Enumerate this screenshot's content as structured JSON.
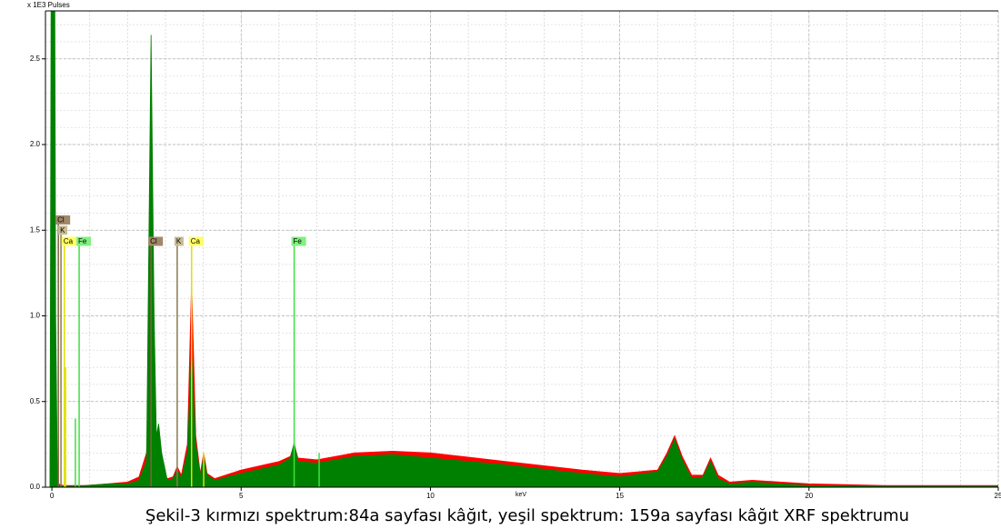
{
  "chart_data": {
    "type": "area",
    "y_label": "x 1E3 Pulses",
    "x_label": "keV",
    "caption": "Şekil-3 kırmızı spektrum:84a sayfası kâğıt, yeşil spektrum: 159a sayfası kâğıt XRF spektrumu",
    "xlim": [
      -0.17,
      25
    ],
    "ylim": [
      0,
      2.78
    ],
    "xticks": [
      0,
      5,
      10,
      15,
      20,
      25
    ],
    "yticks": [
      {
        "value": 0,
        "label": "0.0"
      },
      {
        "value": 0.5,
        "label": "0.5"
      },
      {
        "value": 1,
        "label": "1.0"
      },
      {
        "value": 1.5,
        "label": "1.5"
      },
      {
        "value": 2,
        "label": "2.0"
      },
      {
        "value": 2.5,
        "label": "2.5"
      }
    ],
    "grid": true,
    "x_minor_step": 1,
    "y_minor_step": 0.1,
    "x": [
      -0.05,
      0,
      0.05,
      0.1,
      0.15,
      0.3,
      0.6,
      0.9,
      1.5,
      2.0,
      2.3,
      2.5,
      2.55,
      2.62,
      2.7,
      2.76,
      2.82,
      2.9,
      3.05,
      3.2,
      3.31,
      3.42,
      3.58,
      3.69,
      3.8,
      3.92,
      4.01,
      4.1,
      4.3,
      5,
      6,
      6.3,
      6.4,
      6.5,
      7,
      8,
      9,
      10,
      12,
      14,
      15,
      16,
      16.25,
      16.45,
      16.65,
      16.9,
      17.2,
      17.4,
      17.6,
      17.9,
      18.5,
      20,
      22,
      25
    ],
    "series": [
      {
        "color": "#ff0000",
        "values": [
          0,
          2.5,
          2.0,
          0.3,
          0.02,
          0.01,
          0.01,
          0.01,
          0.02,
          0.03,
          0.06,
          0.2,
          0.6,
          1.4,
          0.5,
          0.15,
          0.12,
          0.1,
          0.05,
          0.06,
          0.12,
          0.07,
          0.25,
          1.2,
          0.3,
          0.08,
          0.2,
          0.08,
          0.05,
          0.1,
          0.15,
          0.18,
          0.25,
          0.17,
          0.16,
          0.2,
          0.21,
          0.2,
          0.15,
          0.1,
          0.08,
          0.1,
          0.2,
          0.3,
          0.18,
          0.07,
          0.07,
          0.17,
          0.07,
          0.03,
          0.04,
          0.02,
          0.01,
          0.01
        ]
      },
      {
        "color": "#008000",
        "values": [
          0,
          5,
          5,
          1.0,
          0.01,
          0.005,
          0.005,
          0.01,
          0.02,
          0.02,
          0.04,
          0.15,
          1.2,
          2.64,
          1.0,
          0.3,
          0.37,
          0.2,
          0.04,
          0.05,
          0.1,
          0.05,
          0.2,
          0.8,
          0.25,
          0.07,
          0.18,
          0.07,
          0.04,
          0.08,
          0.13,
          0.17,
          0.26,
          0.15,
          0.14,
          0.18,
          0.19,
          0.17,
          0.13,
          0.08,
          0.06,
          0.09,
          0.18,
          0.28,
          0.16,
          0.05,
          0.06,
          0.15,
          0.05,
          0.02,
          0.03,
          0.01,
          0.005,
          0.005
        ]
      }
    ],
    "markers": [
      {
        "label": "Cl",
        "x": 0.17,
        "height": 1.56,
        "color": "#a08868",
        "line": "#806040"
      },
      {
        "label": "K",
        "x": 0.24,
        "height": 1.5,
        "color": "#c8bc96",
        "line": "#8a7a50"
      },
      {
        "label": "Ca",
        "x": 0.33,
        "height": 1.435,
        "color": "#ffff60",
        "line": "#e0e000"
      },
      {
        "label": "Fe",
        "x": 0.72,
        "height": 1.435,
        "color": "#80f080",
        "line": "#40e040"
      },
      {
        "label": "Cl",
        "x": 2.62,
        "height": 1.435,
        "color": "#a08868",
        "line": "#806040"
      },
      {
        "label": "K",
        "x": 3.31,
        "height": 1.435,
        "color": "#c8bc96",
        "line": "#8a7a50"
      },
      {
        "label": "Ca",
        "x": 3.69,
        "height": 1.435,
        "color": "#ffff60",
        "line": "#e0e000"
      },
      {
        "label": "Fe",
        "x": 6.4,
        "height": 1.435,
        "color": "#80f080",
        "line": "#40e040"
      }
    ],
    "minor_lines": [
      {
        "x": 0.62,
        "height": 0.4,
        "color": "#40e040"
      },
      {
        "x": 0.36,
        "height": 0.7,
        "color": "#e0e000"
      },
      {
        "x": 4.01,
        "height": 0.2,
        "color": "#e0e000"
      },
      {
        "x": 7.06,
        "height": 0.2,
        "color": "#40e040"
      }
    ]
  }
}
